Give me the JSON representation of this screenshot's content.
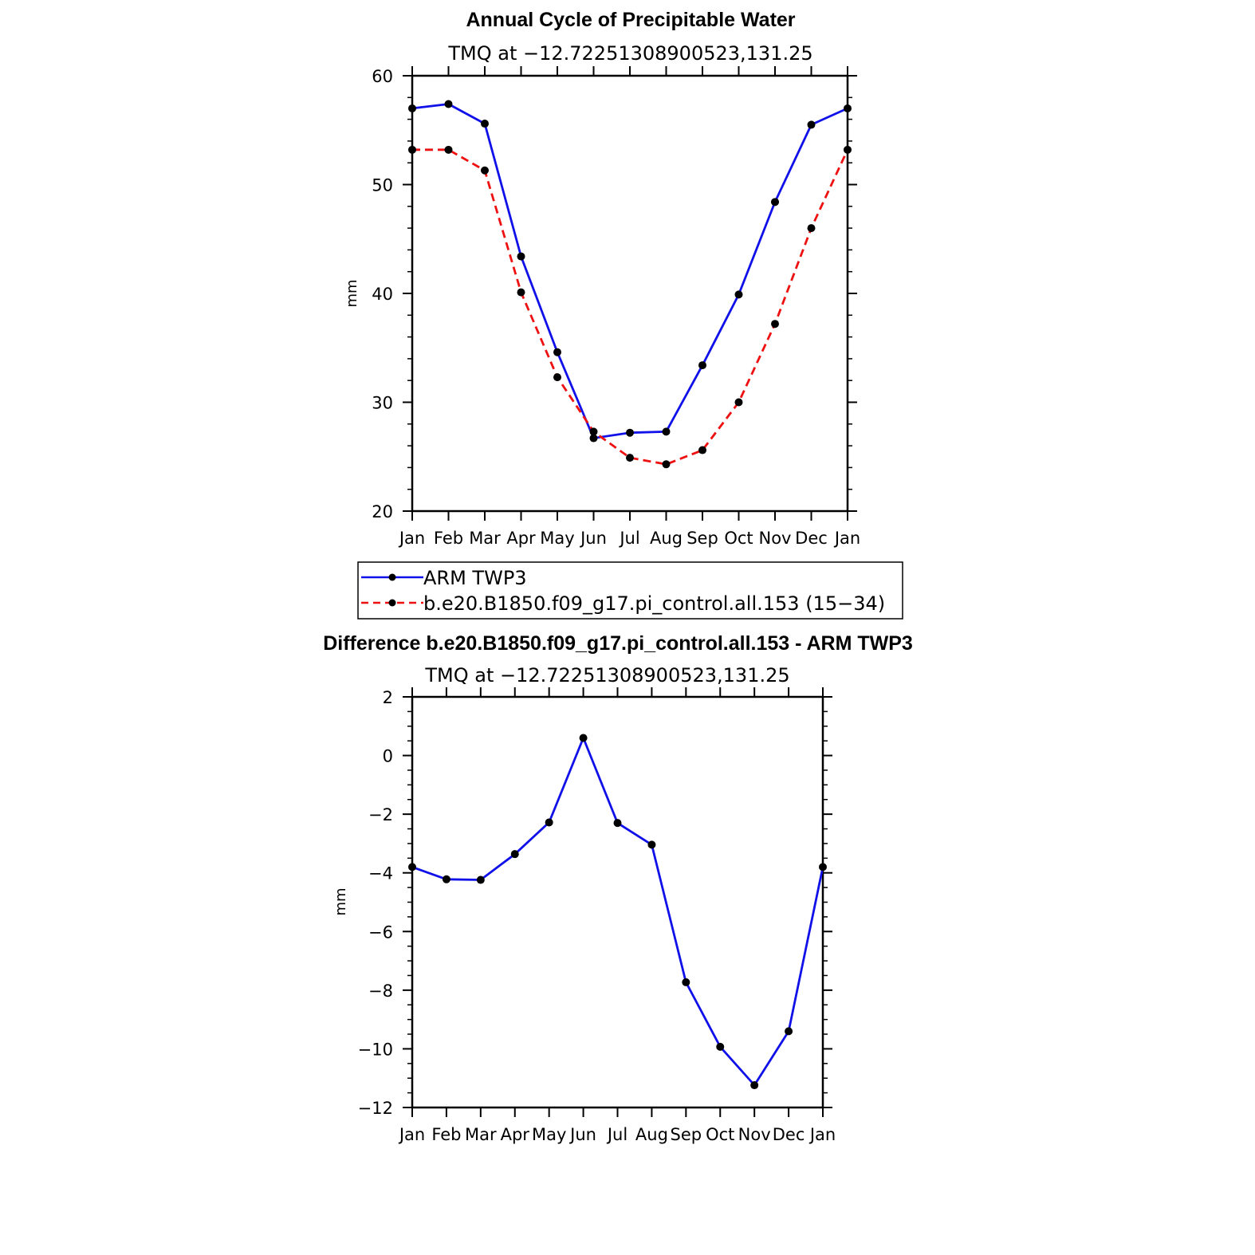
{
  "chart_data": [
    {
      "type": "line",
      "title": "Annual Cycle of Precipitable Water",
      "subtitle": "TMQ at −12.72251308900523,131.25",
      "xlabel": "",
      "ylabel": "mm",
      "categories": [
        "Jan",
        "Feb",
        "Mar",
        "Apr",
        "May",
        "Jun",
        "Jul",
        "Aug",
        "Sep",
        "Oct",
        "Nov",
        "Dec",
        "Jan"
      ],
      "ylim": [
        20,
        60
      ],
      "yticks": [
        "20",
        "30",
        "40",
        "50",
        "60"
      ],
      "grid": false,
      "legend_position": "bottom",
      "series": [
        {
          "name": "ARM TWP3",
          "color": "#1010e8",
          "dash": "solid",
          "values": [
            57.0,
            57.4,
            55.6,
            43.4,
            34.6,
            26.7,
            27.2,
            27.3,
            33.4,
            39.9,
            48.4,
            55.5,
            57.0
          ]
        },
        {
          "name": "b.e20.B1850.f09_g17.pi_control.all.153 (15−34)",
          "color": "#ee1111",
          "dash": "dashed",
          "values": [
            53.2,
            53.2,
            51.3,
            40.1,
            32.3,
            27.3,
            24.9,
            24.3,
            25.6,
            30.0,
            37.2,
            46.0,
            53.2
          ]
        }
      ]
    },
    {
      "type": "line",
      "title": "Difference b.e20.B1850.f09_g17.pi_control.all.153 - ARM TWP3",
      "subtitle": "TMQ at −12.72251308900523,131.25",
      "xlabel": "",
      "ylabel": "mm",
      "categories": [
        "Jan",
        "Feb",
        "Mar",
        "Apr",
        "May",
        "Jun",
        "Jul",
        "Aug",
        "Sep",
        "Oct",
        "Nov",
        "Dec",
        "Jan"
      ],
      "ylim": [
        -12,
        2
      ],
      "yticks": [
        "−12",
        "−10",
        "−8",
        "−6",
        "−4",
        "−2",
        "0",
        "2"
      ],
      "grid": false,
      "series": [
        {
          "color": "#1010e8",
          "dash": "solid",
          "values": [
            -3.8,
            -4.22,
            -4.24,
            -3.36,
            -2.28,
            0.6,
            -2.3,
            -3.04,
            -7.73,
            -9.93,
            -11.24,
            -9.4,
            -3.8
          ]
        }
      ]
    }
  ]
}
